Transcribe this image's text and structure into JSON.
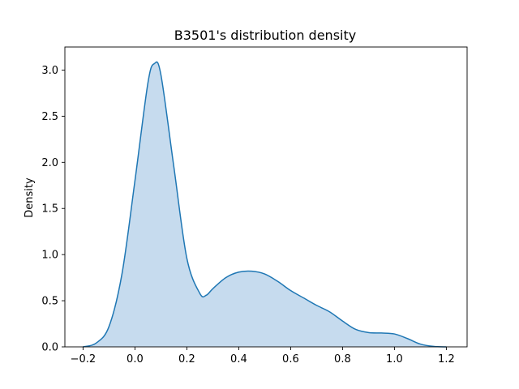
{
  "chart_data": {
    "type": "area",
    "title": "B3501's distribution density",
    "xlabel": "",
    "ylabel": "Density",
    "xlim": [
      -0.27,
      1.28
    ],
    "ylim": [
      0,
      3.25
    ],
    "x_ticks": [
      -0.2,
      0.0,
      0.2,
      0.4,
      0.6,
      0.8,
      1.0,
      1.2
    ],
    "x_tick_labels": [
      "−0.2",
      "0.0",
      "0.2",
      "0.4",
      "0.6",
      "0.8",
      "1.0",
      "1.2"
    ],
    "y_ticks": [
      0.0,
      0.5,
      1.0,
      1.5,
      2.0,
      2.5,
      3.0
    ],
    "y_tick_labels": [
      "0.0",
      "0.5",
      "1.0",
      "1.5",
      "2.0",
      "2.5",
      "3.0"
    ],
    "grid": false,
    "legend": "none",
    "colors": {
      "line": "#1f77b4",
      "fill": "#c6dbee"
    },
    "series": [
      {
        "x": [
          -0.2,
          -0.15,
          -0.1,
          -0.05,
          0.0,
          0.05,
          0.075,
          0.1,
          0.15,
          0.2,
          0.25,
          0.275,
          0.3,
          0.35,
          0.4,
          0.45,
          0.5,
          0.55,
          0.6,
          0.65,
          0.7,
          0.75,
          0.8,
          0.85,
          0.9,
          0.95,
          1.0,
          1.05,
          1.1,
          1.15,
          1.2
        ],
        "y": [
          0.0,
          0.04,
          0.22,
          0.79,
          1.8,
          2.86,
          3.07,
          2.95,
          1.95,
          0.96,
          0.58,
          0.56,
          0.63,
          0.75,
          0.81,
          0.82,
          0.79,
          0.71,
          0.61,
          0.53,
          0.45,
          0.38,
          0.28,
          0.19,
          0.155,
          0.15,
          0.14,
          0.09,
          0.03,
          0.005,
          0.0
        ]
      }
    ]
  }
}
